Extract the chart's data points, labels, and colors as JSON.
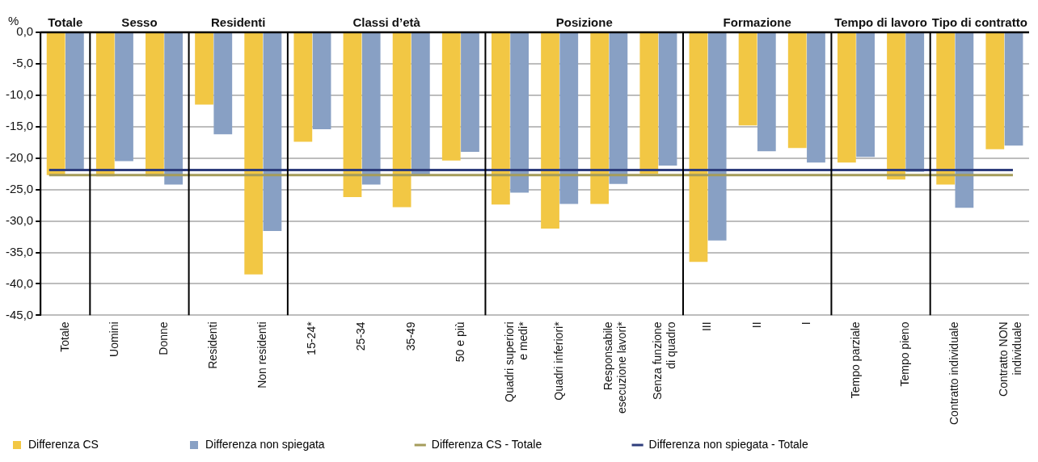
{
  "chart_data": {
    "type": "bar",
    "ylabel": "%",
    "categories": [
      "Totale",
      "Uomini",
      "Donne",
      "Residenti",
      "Non residenti",
      "15-24*",
      "25-34",
      "35-49",
      "50 e più",
      "Quadri superiori\ne medi*",
      "Quadri inferiori*",
      "Responsabile\nesecuzione lavori*",
      "Senza funzione\ndi quadro",
      "III",
      "II",
      "I",
      "Tempo parziale",
      "Tempo pieno",
      "Contratto individuale",
      "Contratto NON\nindividuale"
    ],
    "series": [
      {
        "name": "Differenza CS",
        "color": "#f2c744",
        "values": [
          -22.7,
          -22.9,
          -22.9,
          -11.5,
          -38.5,
          -17.4,
          -26.2,
          -27.8,
          -20.4,
          -27.4,
          -31.2,
          -27.3,
          -22.5,
          -36.5,
          -14.8,
          -18.4,
          -20.7,
          -23.4,
          -24.2,
          -18.6
        ]
      },
      {
        "name": "Differenza non spiegata",
        "color": "#88a0c4",
        "values": [
          -21.9,
          -20.5,
          -24.2,
          -16.2,
          -31.6,
          -15.4,
          -24.2,
          -22.7,
          -19.0,
          -25.5,
          -27.3,
          -24.1,
          -21.2,
          -33.1,
          -18.9,
          -20.7,
          -19.8,
          -22.2,
          -27.9,
          -18.0
        ]
      }
    ],
    "ref_lines": [
      {
        "axis": "y",
        "value": -22.7,
        "label": "Differenza CS - Totale",
        "color": "#a59c5a"
      },
      {
        "axis": "y",
        "value": -21.9,
        "label": "Differenza non spiegata - Totale",
        "color": "#2e3d7c"
      }
    ],
    "annotations": [
      "Totale",
      "Sesso",
      "Residenti",
      "Classi d’età",
      "Posizione",
      "Formazione",
      "Tempo di lavoro",
      "Tipo di contratto"
    ],
    "ylim": [
      -45,
      0
    ],
    "yticks": [
      {
        "value": 0,
        "label": "0,0"
      },
      {
        "value": -5,
        "label": "-5,0"
      },
      {
        "value": -10,
        "label": "-10,0"
      },
      {
        "value": -15,
        "label": "-15,0"
      },
      {
        "value": -20,
        "label": "-20,0"
      },
      {
        "value": -25,
        "label": "-25,0"
      },
      {
        "value": -30,
        "label": "-30,0"
      },
      {
        "value": -35,
        "label": "-35,0"
      },
      {
        "value": -40,
        "label": "-40,0"
      },
      {
        "value": -45,
        "label": "-45,0"
      }
    ],
    "grid": "y",
    "legend": "bottom"
  }
}
